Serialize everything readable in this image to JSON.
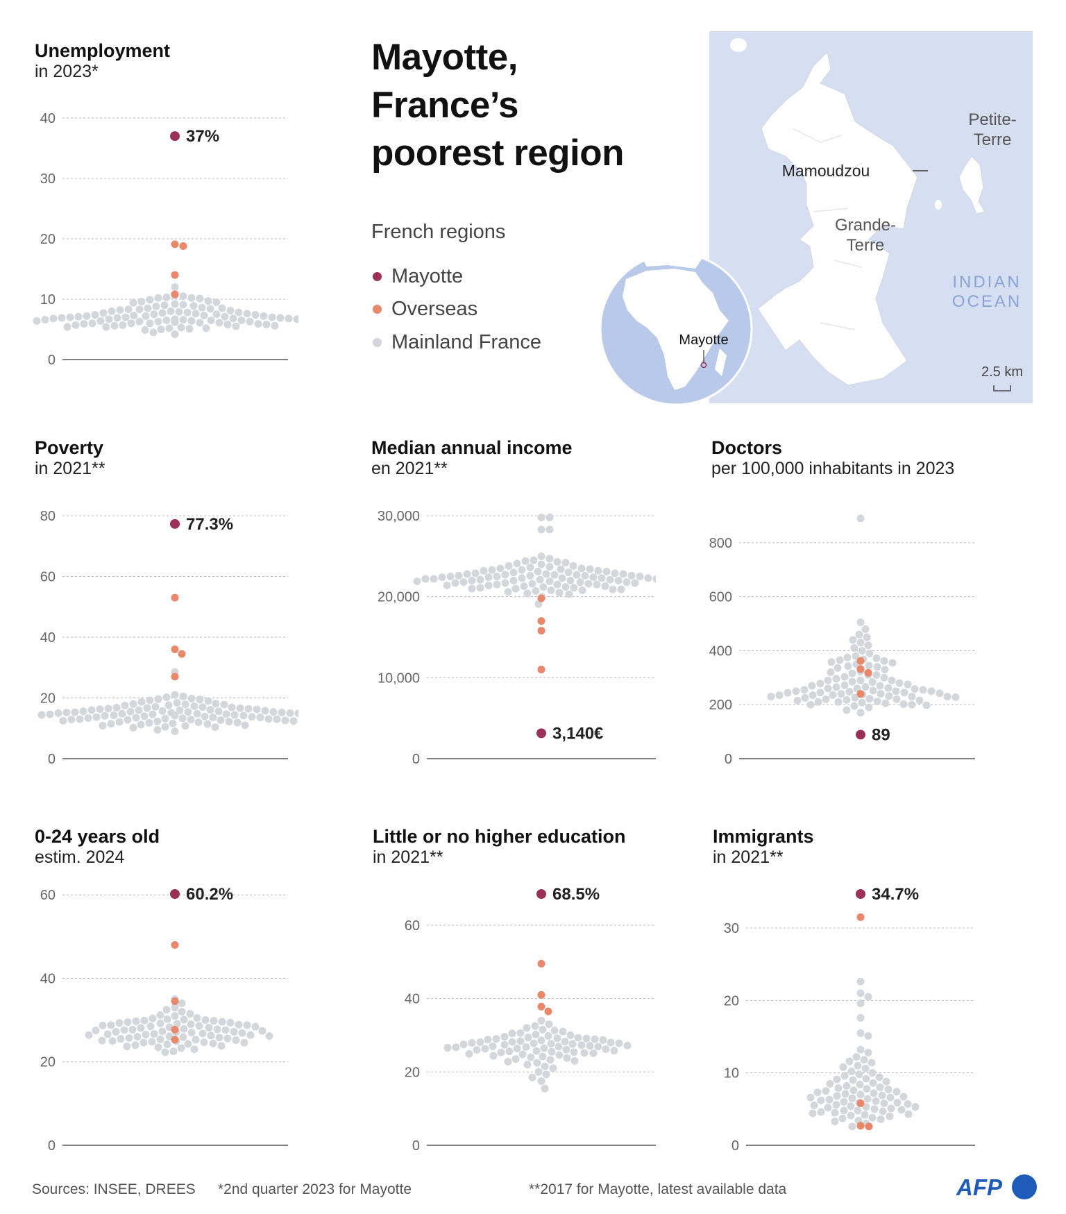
{
  "title_lines": [
    "Mayotte,",
    "France’s",
    "poorest region"
  ],
  "legend": {
    "title": "French regions",
    "items": [
      {
        "label": "Mayotte",
        "color": "#9b3158"
      },
      {
        "label": "Overseas",
        "color": "#e8876a"
      },
      {
        "label": "Mainland France",
        "color": "#d3d6da"
      }
    ]
  },
  "colors": {
    "mayotte": "#9b3158",
    "overseas": "#e8876a",
    "mainland": "#d3d6da",
    "grid": "#b8b8b8",
    "axis": "#555555",
    "map_ocean": "#d6dff1",
    "globe_ocean": "#b9c9e9"
  },
  "map": {
    "mamoudzou": "Mamoudzou",
    "grande_terre_1": "Grande-",
    "grande_terre_2": "Terre",
    "petite_terre_1": "Petite-",
    "petite_terre_2": "Terre",
    "ocean_1": "INDIAN",
    "ocean_2": "OCEAN",
    "scale": "2.5 km",
    "globe_label": "Mayotte"
  },
  "chart_data": [
    {
      "id": "unemployment",
      "type": "scatter",
      "title": "Unemployment",
      "subtitle": "in 2023*",
      "ylim": [
        0,
        40
      ],
      "ticks": [
        0,
        10,
        20,
        30,
        40
      ],
      "grid": true,
      "mayotte": 37,
      "mayotte_label": "37%",
      "overseas": [
        18.8,
        19.1,
        14,
        10.8
      ],
      "mainland": [
        12,
        10.6,
        10.2,
        10.3,
        10.5,
        10.1,
        10.2,
        9.9,
        9.6,
        9.5,
        9.7,
        9.1,
        9.4,
        9.0,
        8.8,
        8.6,
        8.9,
        8.4,
        8.5,
        8.3,
        8.1,
        8.0,
        8.2,
        7.9,
        7.8,
        7.7,
        7.6,
        7.5,
        7.4,
        7.3,
        7.2,
        7.1,
        7.0,
        6.9,
        6.8,
        6.7,
        6.6,
        6.5,
        6.4,
        6.3,
        6.2,
        6.1,
        6.0,
        5.9,
        5.8,
        5.7,
        5.6,
        5.5,
        5.4,
        5.3,
        5.2,
        5.1,
        5.0,
        4.9,
        4.5,
        4.2,
        7.3,
        7.0,
        6.8,
        6.6,
        6.4,
        6.2,
        7.1,
        6.9,
        6.7,
        6.5,
        6.3,
        7.5,
        7.2,
        6.0,
        5.8,
        6.6,
        6.4,
        7.0,
        6.8,
        6.1,
        5.9,
        6.7,
        7.4,
        6.3,
        5.6,
        8.0,
        8.5,
        7.7,
        5.4,
        6.9,
        7.2,
        6.2,
        6.5,
        7.8,
        5.7,
        6.0,
        8.3,
        9.2,
        7.6,
        5.2
      ]
    },
    {
      "id": "poverty",
      "type": "scatter",
      "title": "Poverty",
      "subtitle": "in 2021**",
      "ylim": [
        0,
        80
      ],
      "ticks": [
        0,
        20,
        40,
        60,
        80
      ],
      "grid": true,
      "mayotte": 77.3,
      "mayotte_label": "77.3%",
      "overseas": [
        53,
        36,
        34.5,
        27
      ],
      "mainland": [
        28.5,
        21,
        20.5,
        20.2,
        19.8,
        19.5,
        19.2,
        19.0,
        18.7,
        18.4,
        18.1,
        17.9,
        17.6,
        17.3,
        17.1,
        16.8,
        16.6,
        16.4,
        16.2,
        16.0,
        15.8,
        15.6,
        15.4,
        15.2,
        15.0,
        14.8,
        14.6,
        14.4,
        14.2,
        14.0,
        13.8,
        13.6,
        13.4,
        13.2,
        13.0,
        12.8,
        12.6,
        12.4,
        12.2,
        12.0,
        11.8,
        11.6,
        11.4,
        11.2,
        11.0,
        10.8,
        10.5,
        10.2,
        9.5,
        9.0,
        15.5,
        15.1,
        14.7,
        14.3,
        13.9,
        16.3,
        16.7,
        17.0,
        12.5,
        12.9,
        14.9,
        15.7,
        13.5,
        13.1,
        16.1,
        14.5,
        15.3,
        14.1,
        13.7,
        12.7,
        15.9,
        16.5,
        17.5,
        11.5,
        12.1,
        14.6,
        15.4,
        13.3,
        16.9,
        18.0,
        10.9,
        14.2,
        15.0,
        13.6,
        12.3,
        17.8,
        11.9,
        16.0,
        14.8,
        15.6,
        13.0,
        19.6,
        10.4,
        14.4,
        12.9,
        15.2
      ]
    },
    {
      "id": "income",
      "type": "scatter",
      "title": "Median annual income",
      "subtitle": "en 2021**",
      "ylim": [
        0,
        30000
      ],
      "ticks": [
        0,
        10000,
        20000,
        30000
      ],
      "tick_labels": [
        "0",
        "10,000",
        "20,000",
        "30,000"
      ],
      "grid": true,
      "mayotte": 3140,
      "mayotte_label": "3,140€",
      "overseas": [
        19800,
        17000,
        15800,
        11000
      ],
      "mainland": [
        29800,
        29800,
        28300,
        28300,
        25000,
        24700,
        24500,
        24300,
        24200,
        24000,
        23800,
        23700,
        23500,
        23400,
        23300,
        23200,
        23100,
        23000,
        22900,
        22800,
        22700,
        22600,
        22500,
        22400,
        22300,
        22200,
        22100,
        22000,
        21900,
        21800,
        21700,
        21600,
        21500,
        21400,
        21300,
        21200,
        21100,
        21000,
        20900,
        20800,
        20700,
        20500,
        20300,
        20000,
        19100,
        22500,
        22300,
        22100,
        21900,
        21700,
        22800,
        23000,
        23200,
        21500,
        21300,
        22600,
        22400,
        22200,
        22000,
        21800,
        23400,
        23600,
        21200,
        21000,
        22700,
        22900,
        22300,
        21600,
        24100,
        20600,
        22500,
        22100,
        21900,
        23300,
        21400,
        22600,
        22000,
        23800,
        20900,
        22800,
        21700,
        22200,
        23500,
        21100,
        22400,
        22700,
        21800,
        20400,
        23100,
        22000,
        21500,
        24400,
        22300,
        20800,
        21900,
        22600
      ]
    },
    {
      "id": "doctors",
      "type": "scatter",
      "title": "Doctors",
      "subtitle": "per 100,000 inhabitants in 2023",
      "ylim": [
        0,
        900
      ],
      "ticks": [
        0,
        200,
        400,
        600,
        800
      ],
      "grid": true,
      "mayotte": 89,
      "mayotte_label": "89",
      "overseas": [
        362,
        332,
        318,
        240
      ],
      "mainland": [
        890,
        505,
        480,
        460,
        450,
        440,
        430,
        420,
        410,
        400,
        390,
        380,
        372,
        365,
        358,
        350,
        343,
        336,
        330,
        323,
        316,
        310,
        303,
        296,
        290,
        284,
        278,
        272,
        266,
        260,
        255,
        250,
        245,
        240,
        235,
        230,
        225,
        220,
        215,
        210,
        205,
        200,
        195,
        190,
        180,
        170,
        262,
        258,
        252,
        248,
        242,
        238,
        232,
        228,
        222,
        218,
        270,
        275,
        280,
        285,
        290,
        300,
        212,
        208,
        202,
        198,
        345,
        355,
        362,
        368,
        375,
        244,
        236,
        226,
        216,
        250,
        240,
        230,
        265,
        255,
        320,
        310,
        340,
        230,
        210,
        200,
        260,
        245,
        235,
        270,
        290,
        220,
        250
      ]
    },
    {
      "id": "youth",
      "type": "scatter",
      "title": "0-24 years old",
      "subtitle": "estim. 2024",
      "ylim": [
        0,
        60
      ],
      "ticks": [
        0,
        20,
        40,
        60
      ],
      "grid": true,
      "mayotte": 60.2,
      "mayotte_label": "60.2%",
      "overseas": [
        48,
        34.5,
        27.7,
        25.3
      ],
      "mainland": [
        35,
        34,
        33,
        32.5,
        32,
        31.5,
        31,
        30.5,
        30.2,
        30,
        29.7,
        29.4,
        29.1,
        28.8,
        28.5,
        28.2,
        27.9,
        27.6,
        27.3,
        27,
        26.7,
        26.4,
        26.1,
        25.8,
        25.5,
        25.2,
        24.9,
        24.6,
        24.3,
        24,
        23.7,
        23.3,
        23,
        22.5,
        22.3,
        29.5,
        29,
        28.6,
        28.1,
        27.7,
        27.2,
        26.8,
        26.3,
        25.9,
        25.4,
        25,
        24.6,
        30.4,
        29.8,
        29.2,
        28.4,
        27.5,
        26.6,
        25.7,
        24.8,
        28.9,
        27.4,
        26.2,
        25.6,
        30.1,
        29.3,
        28.7,
        27.1,
        26.5,
        24.4,
        25.3,
        27.8,
        28.3,
        26.9,
        24.2,
        29.6,
        26,
        23.8,
        31.2,
        27.6,
        28.8,
        25.1,
        26.4,
        29.9,
        24.7,
        27.2,
        23.5
      ]
    },
    {
      "id": "education",
      "type": "scatter",
      "title": "Little or no higher education",
      "subtitle": "in 2021**",
      "ylim": [
        0,
        60
      ],
      "ticks": [
        0,
        20,
        40,
        60
      ],
      "grid": true,
      "mayotte": 68.5,
      "mayotte_label": "68.5%",
      "overseas": [
        49.5,
        41,
        37.8,
        36.5
      ],
      "mainland": [
        34,
        33,
        32.5,
        32,
        31.5,
        31,
        30.5,
        30,
        29.6,
        29.2,
        28.8,
        28.4,
        28,
        27.6,
        27.2,
        26.8,
        26.4,
        26,
        25.6,
        25.2,
        24.8,
        24.4,
        24,
        23.5,
        23,
        22.5,
        22,
        21.5,
        21,
        20,
        19.3,
        18.5,
        17.5,
        15.5,
        30.2,
        29.4,
        28.6,
        27.8,
        27,
        26.2,
        25.4,
        24.6,
        28.2,
        27.4,
        26.6,
        25.8,
        29,
        29.8,
        26.9,
        27.1,
        28.9,
        25.7,
        24.2,
        26.5,
        27.7,
        28.1,
        25.3,
        23.8,
        30.6,
        27.9,
        26.3,
        25.1,
        29.1,
        28.3,
        26.7,
        24.9,
        27.3,
        22.8,
        31.3,
        27.5,
        26.1,
        28.7,
        25.5,
        23.3,
        29.3,
        26.9,
        27.8
      ]
    },
    {
      "id": "immigrants",
      "type": "scatter",
      "title": "Immigrants",
      "subtitle": "in 2021**",
      "ylim": [
        0,
        30
      ],
      "ticks": [
        0,
        10,
        20,
        30
      ],
      "grid": true,
      "mayotte": 34.7,
      "mayotte_label": "34.7%",
      "overseas": [
        31.5,
        5.8,
        2.7,
        2.6
      ],
      "mainland": [
        31.5,
        22.6,
        21,
        20.5,
        19.6,
        17.6,
        15.5,
        15.1,
        13.2,
        12.8,
        12.2,
        11.8,
        11.4,
        11,
        10.6,
        10.2,
        9.8,
        9.4,
        9,
        8.6,
        8.2,
        7.8,
        7.4,
        7,
        6.6,
        6.2,
        5.8,
        5.4,
        5,
        4.6,
        4.2,
        3.8,
        3.4,
        3,
        2.6,
        8.4,
        8,
        7.6,
        7.2,
        6.8,
        6.4,
        6,
        5.6,
        5.2,
        4.8,
        4.4,
        4,
        3.6,
        9.2,
        8.8,
        7.9,
        7.1,
        6.5,
        5.9,
        5.3,
        4.7,
        4.1,
        10.8,
        10,
        9.6,
        6.9,
        6.1,
        5.5,
        4.9,
        4.3,
        3.7,
        7.3,
        6.7,
        5.7,
        5.1,
        11.6,
        8.5,
        7.5,
        6.3,
        5.3,
        4.5,
        3.3,
        9.1,
        6.6,
        5.9,
        4.8,
        7.7
      ]
    }
  ],
  "footer": {
    "sources": "Sources: INSEE, DREES",
    "note1": "*2nd quarter 2023 for Mayotte",
    "note2": "**2017 for Mayotte, latest available data",
    "logo": "AFP"
  }
}
